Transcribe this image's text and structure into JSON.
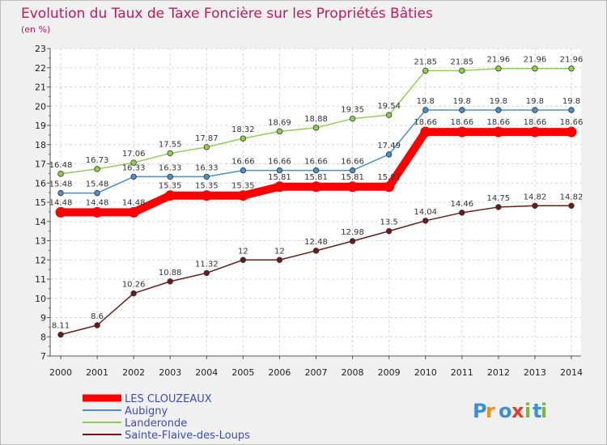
{
  "chart_data": {
    "type": "line",
    "title": "Evolution du Taux de Taxe Foncière sur les Propriétés Bâties",
    "subtitle": "(en %)",
    "xlabel": "",
    "ylabel": "(en %)",
    "ylim": [
      7,
      23
    ],
    "yticks": [
      7,
      8,
      9,
      10,
      11,
      12,
      13,
      14,
      15,
      16,
      17,
      18,
      19,
      20,
      21,
      22,
      23
    ],
    "grid": true,
    "x": [
      "2000",
      "2001",
      "2002",
      "2003",
      "2004",
      "2005",
      "2006",
      "2007",
      "2008",
      "2009",
      "2010",
      "2011",
      "2012",
      "2013",
      "2014"
    ],
    "series": [
      {
        "name": "LES CLOUZEAUX",
        "color": "#ff0000",
        "labels": [
          "14.48",
          "14.48",
          "14.48",
          "15.35",
          "15.35",
          "15.35",
          "15.81",
          "15.81",
          "15.81",
          "15.81",
          "18.66",
          "18.66",
          "18.66",
          "18.66",
          "18.66"
        ],
        "values": [
          14.48,
          14.48,
          14.48,
          15.35,
          15.35,
          15.35,
          15.81,
          15.81,
          15.81,
          15.81,
          18.66,
          18.66,
          18.66,
          18.66,
          18.66
        ]
      },
      {
        "name": "Aubigny",
        "color": "#4a90c8",
        "labels": [
          "15.48",
          "15.48",
          "16.33",
          "16.33",
          "16.33",
          "16.66",
          "16.66",
          "16.66",
          "16.66",
          "17.49",
          "19.8",
          "19.8",
          "19.8",
          "19.8",
          "19.8"
        ],
        "values": [
          15.48,
          15.48,
          16.33,
          16.33,
          16.33,
          16.66,
          16.66,
          16.66,
          16.66,
          17.49,
          19.8,
          19.8,
          19.8,
          19.8,
          19.8
        ]
      },
      {
        "name": "Landeronde",
        "color": "#8ed04e",
        "labels": [
          "16.48",
          "16.73",
          "17.06",
          "17.55",
          "17.87",
          "18.32",
          "18.69",
          "18.88",
          "19.35",
          "19.54",
          "21.85",
          "21.85",
          "21.96",
          "21.96",
          "21.96"
        ],
        "values": [
          16.48,
          16.73,
          17.06,
          17.55,
          17.87,
          18.32,
          18.69,
          18.88,
          19.35,
          19.54,
          21.85,
          21.85,
          21.96,
          21.96,
          21.96
        ]
      },
      {
        "name": "Sainte-Flaive-des-Loups",
        "color": "#6b1a1a",
        "labels": [
          "8.11",
          "8.6",
          "10.26",
          "10.88",
          "11.32",
          "12",
          "12",
          "12.48",
          "12.98",
          "13.5",
          "14.04",
          "14.46",
          "14.75",
          "14.82",
          "14.82"
        ],
        "values": [
          8.11,
          8.6,
          10.26,
          10.88,
          11.32,
          12,
          12,
          12.48,
          12.98,
          13.5,
          14.04,
          14.46,
          14.75,
          14.82,
          14.82
        ]
      }
    ],
    "legend_position": "bottom-left"
  },
  "brand": {
    "letters": [
      "P",
      "r",
      "o",
      "x",
      "i",
      "t",
      "i"
    ],
    "colors": [
      "#3a8fd8",
      "#f28c1e",
      "#3a8fd8",
      "#e63b2e",
      "#7ab648",
      "#3a8fd8",
      "#7ab648"
    ]
  }
}
